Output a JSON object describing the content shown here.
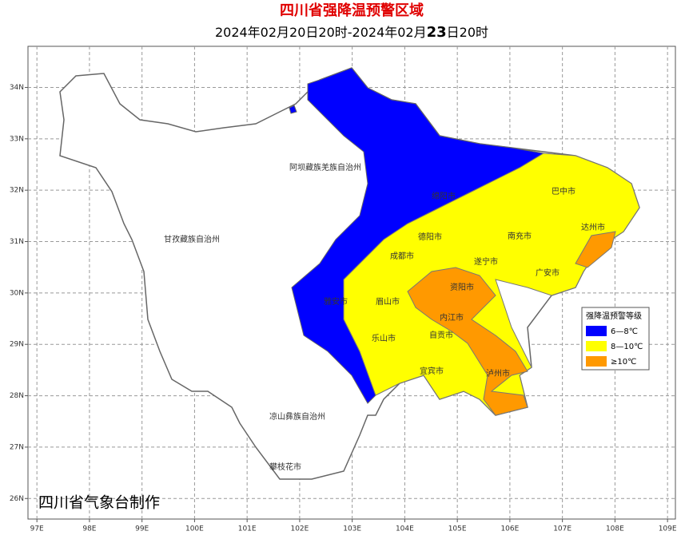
{
  "header": {
    "title": "四川省强降温预警区域",
    "subtitle": [
      "2024年02月20日20时-2024年02月",
      "23",
      "日20时"
    ]
  },
  "map": {
    "xlim": [
      96.83,
      109.15
    ],
    "ylim": [
      25.6,
      34.8
    ],
    "xticks": [
      {
        "value": 97,
        "label": "97E"
      },
      {
        "value": 98,
        "label": "98E"
      },
      {
        "value": 99,
        "label": "99E"
      },
      {
        "value": 100,
        "label": "100E"
      },
      {
        "value": 101,
        "label": "101E"
      },
      {
        "value": 102,
        "label": "102E"
      },
      {
        "value": 103,
        "label": "103E"
      },
      {
        "value": 104,
        "label": "104E"
      },
      {
        "value": 105,
        "label": "105E"
      },
      {
        "value": 106,
        "label": "106E"
      },
      {
        "value": 107,
        "label": "107E"
      },
      {
        "value": 108,
        "label": "108E"
      },
      {
        "value": 109,
        "label": "109E"
      }
    ],
    "yticks": [
      {
        "value": 26,
        "label": "26N"
      },
      {
        "value": 27,
        "label": "27N"
      },
      {
        "value": 28,
        "label": "28N"
      },
      {
        "value": 29,
        "label": "29N"
      },
      {
        "value": 30,
        "label": "30N"
      },
      {
        "value": 31,
        "label": "31N"
      },
      {
        "value": 32,
        "label": "32N"
      },
      {
        "value": 33,
        "label": "33N"
      },
      {
        "value": 34,
        "label": "34N"
      }
    ],
    "cities": [
      "阿坝藏族羌族自治州",
      "甘孜藏族自治州",
      "绵阳市",
      "巴中市",
      "德阳市",
      "南充市",
      "达州市",
      "成都市",
      "遂宁市",
      "广安市",
      "资阳市",
      "雅安市",
      "眉山市",
      "内江市",
      "乐山市",
      "自贡市",
      "宜宾市",
      "泸州市",
      "凉山彝族自治州",
      "攀枝花市"
    ],
    "legend": {
      "title": "强降温预警等级",
      "items": [
        {
          "label": "6—8℃",
          "color": "#0000ff"
        },
        {
          "label": "8—10℃",
          "color": "#ffff00"
        },
        {
          "label": "≥10℃",
          "color": "#ff9900"
        }
      ]
    }
  },
  "footer": "四川省气象台制作"
}
